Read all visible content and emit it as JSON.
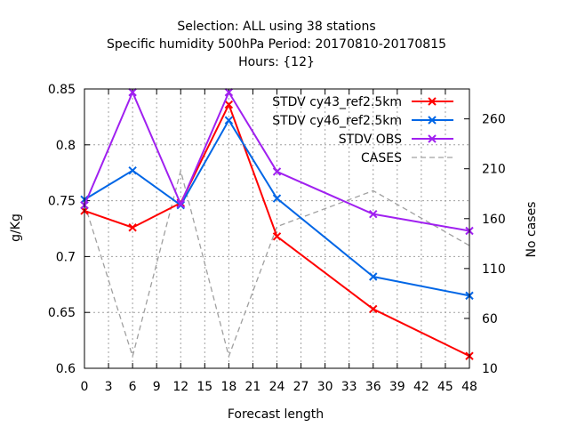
{
  "chart_data": {
    "type": "line",
    "title_lines": [
      "Selection: ALL using    38 stations",
      "Specific humidity 500hPa   Period: 20170810-20170815",
      "Hours: {12}"
    ],
    "xlabel": "Forecast length",
    "ylabel": "g/Kg",
    "y2label": "No cases",
    "xlim": [
      0,
      48
    ],
    "ylim": [
      0.6,
      0.85
    ],
    "y2lim": [
      10,
      290
    ],
    "xticks": [
      0,
      3,
      6,
      9,
      12,
      15,
      18,
      21,
      24,
      27,
      30,
      33,
      36,
      39,
      42,
      45,
      48
    ],
    "yticks": [
      0.6,
      0.65,
      0.7,
      0.75,
      0.8,
      0.85
    ],
    "ytick_labels": [
      "0.6",
      "0.65",
      "0.7",
      "0.75",
      "0.8",
      "0.85"
    ],
    "y2ticks": [
      10,
      60,
      110,
      160,
      210,
      260
    ],
    "grid": true,
    "legend_position": "top-right",
    "series": [
      {
        "name": "STDV cy43_ref2.5km",
        "axis": "y",
        "color": "#ff0000",
        "style": "solid",
        "marker": "x",
        "x": [
          0,
          6,
          12,
          18,
          24,
          36,
          48
        ],
        "values": [
          0.741,
          0.726,
          0.748,
          0.836,
          0.718,
          0.653,
          0.611
        ]
      },
      {
        "name": "STDV cy46_ref2.5km",
        "axis": "y",
        "color": "#0066e6",
        "style": "solid",
        "marker": "x",
        "x": [
          0,
          6,
          12,
          18,
          24,
          36,
          48
        ],
        "values": [
          0.751,
          0.777,
          0.746,
          0.822,
          0.752,
          0.682,
          0.665
        ]
      },
      {
        "name": "STDV OBS",
        "axis": "y",
        "color": "#a020f0",
        "style": "solid",
        "marker": "x",
        "x": [
          0,
          6,
          12,
          18,
          24,
          36,
          48
        ],
        "values": [
          0.746,
          0.847,
          0.747,
          0.847,
          0.776,
          0.738,
          0.723
        ]
      },
      {
        "name": "CASES",
        "axis": "y2",
        "color": "#a0a0a0",
        "style": "dashed",
        "marker": "none",
        "x": [
          0,
          6,
          12,
          18,
          24,
          36,
          48
        ],
        "values": [
          175,
          22,
          208,
          22,
          152,
          188,
          133
        ]
      }
    ]
  }
}
